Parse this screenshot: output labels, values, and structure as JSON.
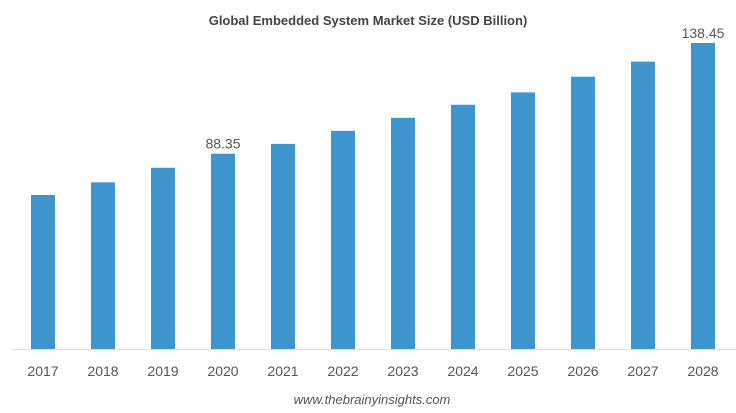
{
  "chart_data": {
    "type": "bar",
    "title": "Global Embedded System Market Size (USD Billion)",
    "xlabel": "",
    "ylabel": "",
    "categories": [
      "2017",
      "2018",
      "2019",
      "2020",
      "2021",
      "2022",
      "2023",
      "2024",
      "2025",
      "2026",
      "2027",
      "2028"
    ],
    "values": [
      69.7,
      75.4,
      82.0,
      88.35,
      92.8,
      98.7,
      104.6,
      110.5,
      116.1,
      123.2,
      130.0,
      138.45
    ],
    "data_labels": {
      "2020": "88.35",
      "2028": "138.45"
    },
    "ylim": [
      0,
      138.45
    ],
    "grid": false,
    "bar_color": "#3f95ce",
    "source": "www.thebrainyinsights.com"
  }
}
